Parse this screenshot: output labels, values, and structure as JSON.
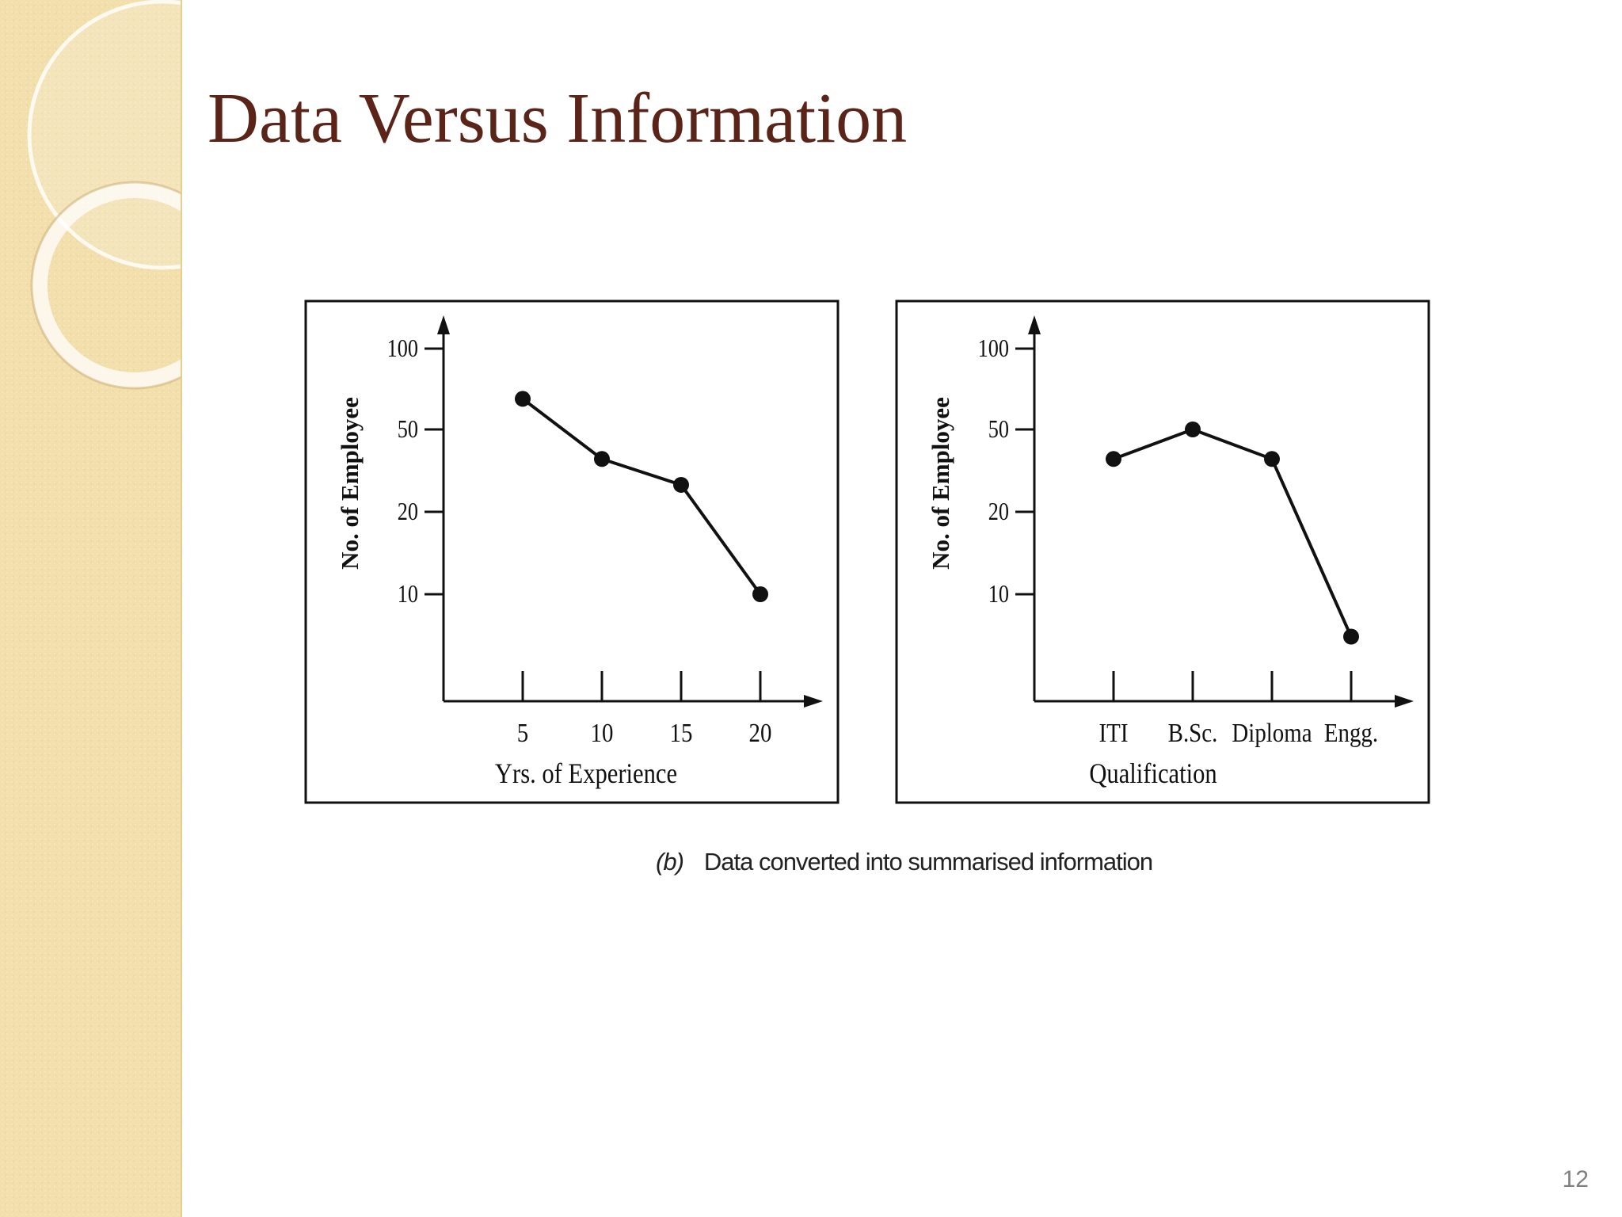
{
  "slide": {
    "title": "Data Versus Information",
    "caption_prefix": "(b)",
    "caption_text": "Data converted into summarised information",
    "page_number": "12"
  },
  "colors": {
    "title": "#5a2419",
    "sidebar": "#f2dfab",
    "ink": "#111111"
  },
  "chart_data": [
    {
      "type": "line",
      "xlabel": "Yrs. of Experience",
      "ylabel": "No. of Employee",
      "categories": [
        "5",
        "10",
        "15",
        "20"
      ],
      "y_ticks": [
        100,
        50,
        20,
        10
      ],
      "y_scale": "log",
      "series": [
        {
          "values": [
            65,
            36,
            27,
            10
          ]
        }
      ],
      "grid": false,
      "legend": "none"
    },
    {
      "type": "line",
      "xlabel": "Qualification",
      "ylabel": "No. of Employee",
      "categories": [
        "ITI",
        "B.Sc.",
        "Diploma",
        "Engg."
      ],
      "y_ticks": [
        100,
        50,
        20,
        10
      ],
      "y_scale": "log",
      "series": [
        {
          "values": [
            36,
            50,
            36,
            7
          ]
        }
      ],
      "grid": false,
      "legend": "none"
    }
  ]
}
